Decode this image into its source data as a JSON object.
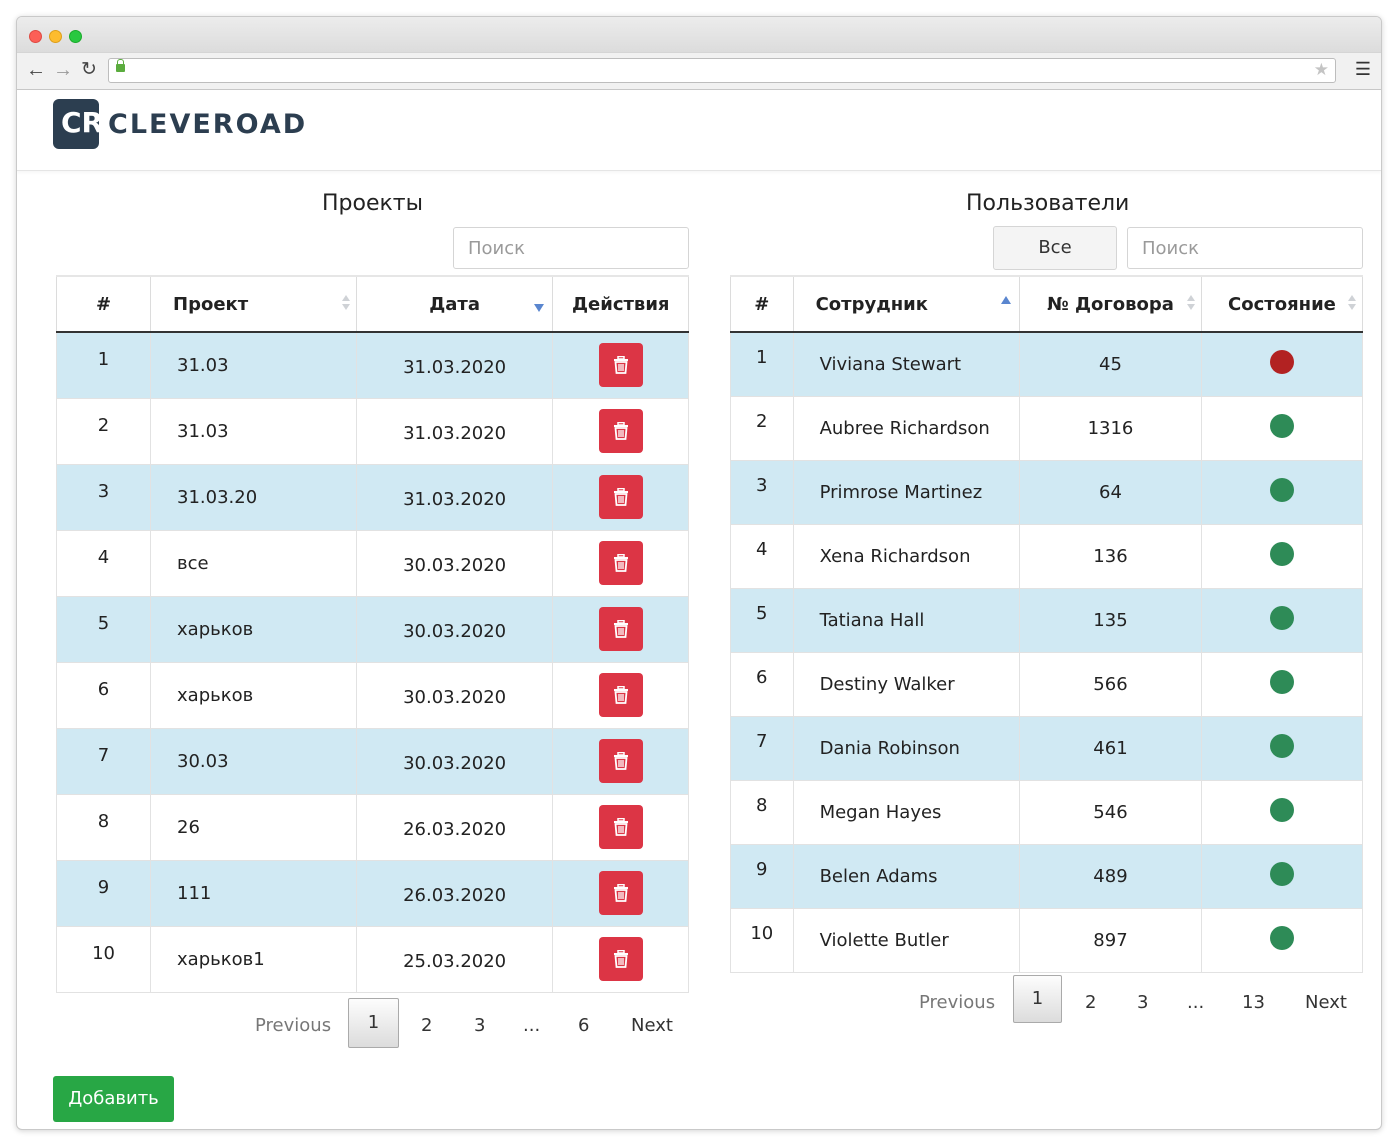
{
  "brand": {
    "logo_mark": "CR",
    "name": "CLEVEROAD"
  },
  "projects": {
    "title": "Проекты",
    "search_placeholder": "Поиск",
    "columns": [
      "#",
      "Проект",
      "Дата",
      "Действия"
    ],
    "rows": [
      {
        "num": "1",
        "name": "31.03",
        "date": "31.03.2020"
      },
      {
        "num": "2",
        "name": "31.03",
        "date": "31.03.2020"
      },
      {
        "num": "3",
        "name": "31.03.20",
        "date": "31.03.2020"
      },
      {
        "num": "4",
        "name": "все",
        "date": "30.03.2020"
      },
      {
        "num": "5",
        "name": "харьков",
        "date": "30.03.2020"
      },
      {
        "num": "6",
        "name": "харьков",
        "date": "30.03.2020"
      },
      {
        "num": "7",
        "name": "30.03",
        "date": "30.03.2020"
      },
      {
        "num": "8",
        "name": "26",
        "date": "26.03.2020"
      },
      {
        "num": "9",
        "name": "111",
        "date": "26.03.2020"
      },
      {
        "num": "10",
        "name": "харьков1",
        "date": "25.03.2020"
      }
    ],
    "pagination": {
      "previous": "Previous",
      "pages": [
        "1",
        "2",
        "3",
        "...",
        "6"
      ],
      "active": "1",
      "next": "Next"
    }
  },
  "users": {
    "title": "Пользователи",
    "filter_label": "Все",
    "search_placeholder": "Поиск",
    "columns": [
      "#",
      "Сотрудник",
      "№ Договора",
      "Состояние"
    ],
    "rows": [
      {
        "num": "1",
        "name": "Viviana Stewart",
        "contract": "45",
        "status": "inactive"
      },
      {
        "num": "2",
        "name": "Aubree Richardson",
        "contract": "1316",
        "status": "active"
      },
      {
        "num": "3",
        "name": "Primrose Martinez",
        "contract": "64",
        "status": "active"
      },
      {
        "num": "4",
        "name": "Xena Richardson",
        "contract": "136",
        "status": "active"
      },
      {
        "num": "5",
        "name": "Tatiana Hall",
        "contract": "135",
        "status": "active"
      },
      {
        "num": "6",
        "name": "Destiny Walker",
        "contract": "566",
        "status": "active"
      },
      {
        "num": "7",
        "name": "Dania Robinson",
        "contract": "461",
        "status": "active"
      },
      {
        "num": "8",
        "name": "Megan Hayes",
        "contract": "546",
        "status": "active"
      },
      {
        "num": "9",
        "name": "Belen Adams",
        "contract": "489",
        "status": "active"
      },
      {
        "num": "10",
        "name": "Violette Butler",
        "contract": "897",
        "status": "active"
      }
    ],
    "pagination": {
      "previous": "Previous",
      "pages": [
        "1",
        "2",
        "3",
        "...",
        "13"
      ],
      "active": "1",
      "next": "Next"
    }
  },
  "add_button": "Добавить",
  "colors": {
    "delete": "#dc3545",
    "status_active": "#2e8b57",
    "status_inactive": "#b22222",
    "row_highlight": "#d0e9f3",
    "add": "#28a745"
  }
}
